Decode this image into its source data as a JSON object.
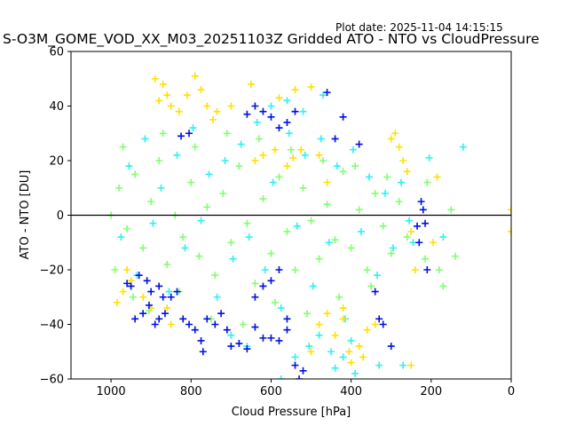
{
  "chart_data": {
    "type": "scatter",
    "title": "S-O3M_GOME_VOD_XX_M03_20251103Z Gridded ATO - NTO vs CloudPressure",
    "plot_date": "Plot date: 2025-11-04 14:15:15",
    "xlabel": "Cloud Pressure [hPa]",
    "ylabel": "ATO - NTO [DU]",
    "xlim": [
      1100,
      0
    ],
    "ylim": [
      -60,
      60
    ],
    "x_inverted": true,
    "xticks": [
      1000,
      800,
      600,
      400,
      200,
      0
    ],
    "xtick_labels": [
      "1000",
      "800",
      "600",
      "400",
      "200",
      "0"
    ],
    "yticks": [
      -60,
      -40,
      -20,
      0,
      20,
      40,
      60
    ],
    "ytick_labels": [
      "−60",
      "−40",
      "−20",
      "0",
      "20",
      "40",
      "60"
    ],
    "reference_line_y": 0,
    "marker": "+",
    "grid": false,
    "legend": "none",
    "series": [
      {
        "name": "lime",
        "color": "#80ff70",
        "points": [
          [
            980,
            10
          ],
          [
            960,
            -5
          ],
          [
            940,
            15
          ],
          [
            920,
            -12
          ],
          [
            900,
            5
          ],
          [
            880,
            20
          ],
          [
            860,
            -18
          ],
          [
            840,
            0
          ],
          [
            820,
            -8
          ],
          [
            800,
            12
          ],
          [
            780,
            -15
          ],
          [
            760,
            3
          ],
          [
            740,
            -22
          ],
          [
            720,
            8
          ],
          [
            700,
            -10
          ],
          [
            680,
            18
          ],
          [
            660,
            -3
          ],
          [
            640,
            -25
          ],
          [
            620,
            6
          ],
          [
            600,
            -14
          ],
          [
            580,
            14
          ],
          [
            560,
            -6
          ],
          [
            540,
            -20
          ],
          [
            520,
            10
          ],
          [
            500,
            -2
          ],
          [
            480,
            -16
          ],
          [
            460,
            4
          ],
          [
            440,
            -9
          ],
          [
            420,
            16
          ],
          [
            400,
            -12
          ],
          [
            380,
            2
          ],
          [
            360,
            -20
          ],
          [
            340,
            8
          ],
          [
            320,
            -4
          ],
          [
            300,
            -14
          ],
          [
            280,
            5
          ],
          [
            260,
            -8
          ],
          [
            945,
            -30
          ],
          [
            905,
            -35
          ],
          [
            870,
            30
          ],
          [
            830,
            -28
          ],
          [
            790,
            25
          ],
          [
            750,
            -38
          ],
          [
            710,
            30
          ],
          [
            670,
            -40
          ],
          [
            630,
            28
          ],
          [
            590,
            -32
          ],
          [
            550,
            24
          ],
          [
            510,
            -36
          ],
          [
            470,
            20
          ],
          [
            430,
            -30
          ],
          [
            390,
            18
          ],
          [
            350,
            -26
          ],
          [
            310,
            14
          ],
          [
            1000,
            0
          ],
          [
            990,
            -20
          ],
          [
            970,
            25
          ],
          [
            215,
            -16
          ],
          [
            210,
            12
          ],
          [
            180,
            -20
          ],
          [
            170,
            -26
          ],
          [
            150,
            2
          ],
          [
            140,
            -15
          ]
        ]
      },
      {
        "name": "cyan",
        "color": "#30f0f0",
        "points": [
          [
            975,
            -8
          ],
          [
            955,
            18
          ],
          [
            935,
            -22
          ],
          [
            915,
            28
          ],
          [
            895,
            -3
          ],
          [
            875,
            10
          ],
          [
            855,
            -28
          ],
          [
            835,
            22
          ],
          [
            815,
            -12
          ],
          [
            795,
            32
          ],
          [
            775,
            -2
          ],
          [
            755,
            15
          ],
          [
            735,
            -30
          ],
          [
            715,
            20
          ],
          [
            695,
            -16
          ],
          [
            675,
            26
          ],
          [
            655,
            -8
          ],
          [
            635,
            34
          ],
          [
            615,
            -20
          ],
          [
            595,
            12
          ],
          [
            575,
            -34
          ],
          [
            555,
            30
          ],
          [
            535,
            -4
          ],
          [
            515,
            22
          ],
          [
            495,
            -26
          ],
          [
            475,
            28
          ],
          [
            455,
            -10
          ],
          [
            435,
            18
          ],
          [
            415,
            -38
          ],
          [
            395,
            24
          ],
          [
            375,
            -6
          ],
          [
            355,
            14
          ],
          [
            335,
            -22
          ],
          [
            315,
            8
          ],
          [
            295,
            -12
          ],
          [
            275,
            12
          ],
          [
            255,
            -2
          ],
          [
            600,
            40
          ],
          [
            560,
            42
          ],
          [
            520,
            38
          ],
          [
            480,
            -44
          ],
          [
            450,
            -50
          ],
          [
            420,
            -52
          ],
          [
            540,
            -52
          ],
          [
            505,
            -48
          ],
          [
            470,
            44
          ],
          [
            440,
            -56
          ],
          [
            400,
            -46
          ],
          [
            330,
            -55
          ],
          [
            390,
            -58
          ],
          [
            660,
            -48
          ],
          [
            700,
            -44
          ],
          [
            575,
            -60
          ],
          [
            270,
            -55
          ],
          [
            245,
            -10
          ],
          [
            120,
            25
          ],
          [
            170,
            -8
          ],
          [
            205,
            21
          ]
        ]
      },
      {
        "name": "yellow",
        "color": "#ffe000",
        "points": [
          [
            890,
            50
          ],
          [
            870,
            48
          ],
          [
            860,
            44
          ],
          [
            880,
            42
          ],
          [
            850,
            40
          ],
          [
            830,
            38
          ],
          [
            810,
            44
          ],
          [
            790,
            51
          ],
          [
            775,
            46
          ],
          [
            760,
            40
          ],
          [
            745,
            35
          ],
          [
            735,
            38
          ],
          [
            700,
            40
          ],
          [
            650,
            48
          ],
          [
            580,
            43
          ],
          [
            540,
            46
          ],
          [
            500,
            47
          ],
          [
            480,
            22
          ],
          [
            460,
            12
          ],
          [
            300,
            28
          ],
          [
            290,
            30
          ],
          [
            280,
            25
          ],
          [
            270,
            20
          ],
          [
            260,
            16
          ],
          [
            250,
            -6
          ],
          [
            240,
            -20
          ],
          [
            960,
            -20
          ],
          [
            970,
            -28
          ],
          [
            985,
            -32
          ],
          [
            950,
            -24
          ],
          [
            920,
            -30
          ],
          [
            900,
            -34
          ],
          [
            880,
            -26
          ],
          [
            860,
            -34
          ],
          [
            850,
            -40
          ],
          [
            500,
            -50
          ],
          [
            480,
            -40
          ],
          [
            460,
            -36
          ],
          [
            440,
            -44
          ],
          [
            420,
            -38
          ],
          [
            400,
            -54
          ],
          [
            380,
            -48
          ],
          [
            360,
            -42
          ],
          [
            340,
            -40
          ],
          [
            640,
            20
          ],
          [
            620,
            22
          ],
          [
            590,
            24
          ],
          [
            560,
            18
          ],
          [
            545,
            21
          ],
          [
            525,
            24
          ],
          [
            420,
            -34
          ],
          [
            405,
            -50
          ],
          [
            370,
            -52
          ],
          [
            250,
            -55
          ],
          [
            195,
            -10
          ],
          [
            185,
            14
          ],
          [
            0,
            2
          ],
          [
            0,
            -6
          ]
        ]
      },
      {
        "name": "blue",
        "color": "#0010e0",
        "points": [
          [
            940,
            -38
          ],
          [
            920,
            -36
          ],
          [
            905,
            -33
          ],
          [
            890,
            -40
          ],
          [
            880,
            -38
          ],
          [
            865,
            -36
          ],
          [
            850,
            -30
          ],
          [
            835,
            -28
          ],
          [
            820,
            -38
          ],
          [
            805,
            -40
          ],
          [
            790,
            -42
          ],
          [
            775,
            -46
          ],
          [
            760,
            -38
          ],
          [
            740,
            -40
          ],
          [
            725,
            -36
          ],
          [
            710,
            -42
          ],
          [
            700,
            -48
          ],
          [
            680,
            -47
          ],
          [
            660,
            -49
          ],
          [
            640,
            -41
          ],
          [
            620,
            -45
          ],
          [
            600,
            -45
          ],
          [
            580,
            -46
          ],
          [
            560,
            -42
          ],
          [
            540,
            -55
          ],
          [
            520,
            -57
          ],
          [
            880,
            -26
          ],
          [
            870,
            -30
          ],
          [
            900,
            -28
          ],
          [
            950,
            -26
          ],
          [
            930,
            -22
          ],
          [
            910,
            -24
          ],
          [
            960,
            -25
          ],
          [
            825,
            29
          ],
          [
            805,
            30
          ],
          [
            660,
            37
          ],
          [
            640,
            40
          ],
          [
            620,
            38
          ],
          [
            600,
            36
          ],
          [
            580,
            32
          ],
          [
            560,
            34
          ],
          [
            540,
            38
          ],
          [
            460,
            45
          ],
          [
            420,
            36
          ],
          [
            440,
            28
          ],
          [
            380,
            26
          ],
          [
            340,
            -28
          ],
          [
            330,
            -38
          ],
          [
            320,
            -40
          ],
          [
            300,
            -48
          ],
          [
            210,
            -20
          ],
          [
            215,
            -3
          ],
          [
            220,
            2
          ],
          [
            225,
            5
          ],
          [
            235,
            -4
          ],
          [
            230,
            -10
          ],
          [
            640,
            -30
          ],
          [
            620,
            -26
          ],
          [
            600,
            -24
          ],
          [
            580,
            -20
          ],
          [
            560,
            -38
          ],
          [
            530,
            -60
          ],
          [
            770,
            -50
          ]
        ]
      }
    ]
  }
}
